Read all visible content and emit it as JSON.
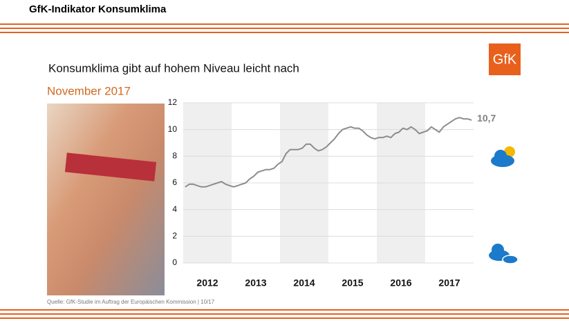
{
  "header": {
    "title": "GfK-Indikator Konsumklima"
  },
  "logo": "GfK",
  "source": "Quelle: GfK-Studie im Auftrag der Europäischen Kommission | 10/17",
  "chart_data": {
    "type": "line",
    "title": "Konsumklima gibt auf hohem Niveau leicht nach",
    "subtitle": "November 2017",
    "categories": [
      "2012",
      null,
      null,
      null,
      null,
      null,
      null,
      null,
      null,
      null,
      null,
      null,
      "2013",
      null,
      null,
      null,
      null,
      null,
      null,
      null,
      null,
      null,
      null,
      null,
      "2014",
      null,
      null,
      null,
      null,
      null,
      null,
      null,
      null,
      null,
      null,
      null,
      "2015",
      null,
      null,
      null,
      null,
      null,
      null,
      null,
      null,
      null,
      null,
      null,
      "2016",
      null,
      null,
      null,
      null,
      null,
      null,
      null,
      null,
      null,
      null,
      null,
      "2017",
      null,
      null,
      null,
      null,
      null,
      null,
      null,
      null,
      null,
      null,
      null
    ],
    "series": [
      {
        "name": "Konsumklima",
        "color": "#8c8c8c",
        "values": [
          5.7,
          5.9,
          5.9,
          5.8,
          5.7,
          5.7,
          5.8,
          5.9,
          6.0,
          6.1,
          5.9,
          5.8,
          5.7,
          5.8,
          5.9,
          6.0,
          6.3,
          6.5,
          6.8,
          6.9,
          7.0,
          7.0,
          7.1,
          7.4,
          7.6,
          8.2,
          8.5,
          8.5,
          8.5,
          8.6,
          8.9,
          8.9,
          8.6,
          8.4,
          8.5,
          8.7,
          9.0,
          9.3,
          9.7,
          10.0,
          10.1,
          10.2,
          10.1,
          10.1,
          9.9,
          9.6,
          9.4,
          9.3,
          9.4,
          9.4,
          9.5,
          9.4,
          9.7,
          9.8,
          10.1,
          10.0,
          10.2,
          10.0,
          9.7,
          9.8,
          9.9,
          10.2,
          10.0,
          9.8,
          10.2,
          10.4,
          10.6,
          10.8,
          10.9,
          10.8,
          10.8,
          10.7
        ],
        "value_labels": [
          null,
          null,
          null,
          null,
          null,
          null,
          null,
          null,
          null,
          null,
          null,
          null,
          null,
          null,
          null,
          null,
          null,
          null,
          null,
          null,
          null,
          null,
          null,
          null,
          null,
          null,
          null,
          null,
          null,
          null,
          null,
          null,
          null,
          null,
          null,
          null,
          null,
          null,
          null,
          null,
          null,
          null,
          null,
          null,
          null,
          null,
          null,
          null,
          null,
          null,
          null,
          null,
          null,
          null,
          null,
          null,
          null,
          null,
          null,
          null,
          null,
          null,
          null,
          null,
          null,
          null,
          null,
          null,
          null,
          null,
          null,
          "10,7"
        ]
      }
    ],
    "ylim": [
      0,
      12
    ],
    "yticks": [
      0,
      2,
      4,
      6,
      8,
      10,
      12
    ],
    "grid": true
  }
}
